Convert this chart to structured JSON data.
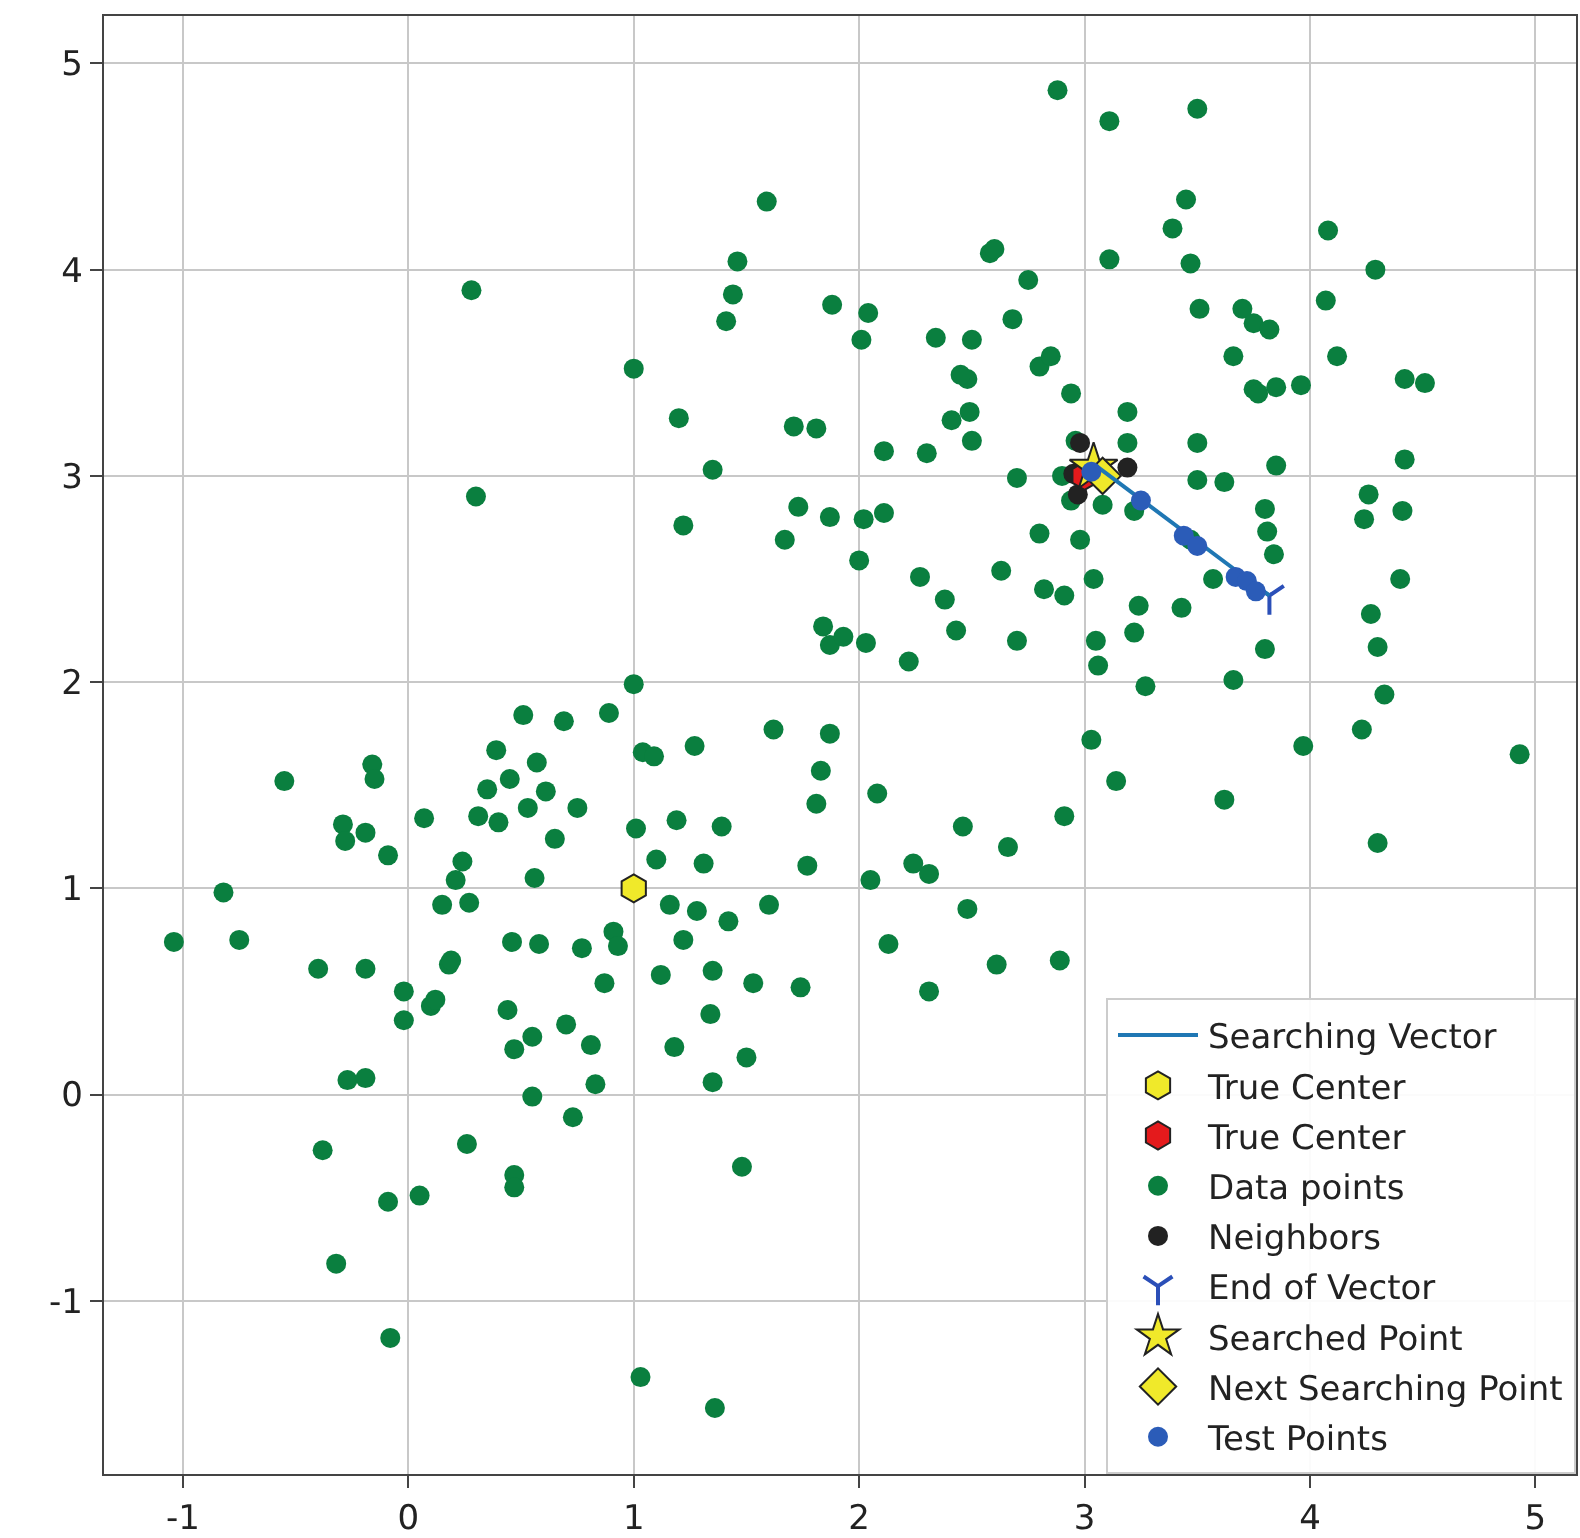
{
  "chart_data": {
    "type": "scatter",
    "xlim": [
      -1.35,
      5.18
    ],
    "ylim": [
      -1.84,
      5.23
    ],
    "xticks": [
      -1,
      0,
      1,
      2,
      3,
      4,
      5
    ],
    "yticks": [
      -1,
      0,
      1,
      2,
      3,
      4,
      5
    ],
    "grid": true,
    "legend": "bottom right",
    "series": [
      {
        "name": "Searching Vector",
        "type": "line",
        "marker": "none",
        "line_style": "solid",
        "color": "#1f77b4",
        "x": [
          3.05,
          3.82
        ],
        "values": [
          3.05,
          2.42
        ]
      },
      {
        "name": "True Center",
        "color": "#f0e92a",
        "x": [
          1.0
        ],
        "values": [
          1.0
        ]
      },
      {
        "name": "True Center",
        "color": "#e41a1c",
        "x": [
          3.0
        ],
        "values": [
          3.0
        ]
      },
      {
        "name": "Data points",
        "marker": "circle",
        "color": "#0a7f3f",
        "x": [
          -1.04,
          -0.82,
          -0.75,
          -0.55,
          -0.4,
          -0.38,
          -0.32,
          -0.29,
          -0.28,
          -0.27,
          -0.19,
          -0.19,
          -0.19,
          -0.16,
          -0.15,
          -0.09,
          -0.08,
          -0.09,
          -0.02,
          -0.02,
          0.05,
          0.07,
          0.1,
          0.12,
          0.15,
          0.18,
          0.19,
          0.21,
          0.24,
          0.26,
          0.27,
          0.31,
          0.35,
          0.39,
          0.4,
          0.45,
          0.44,
          0.46,
          0.47,
          0.47,
          0.47,
          0.51,
          0.53,
          0.55,
          0.55,
          0.56,
          0.57,
          0.58,
          0.61,
          0.65,
          0.69,
          0.7,
          0.75,
          0.77,
          0.73,
          0.81,
          0.83,
          0.87,
          0.89,
          0.91,
          0.93,
          1.0,
          1.01,
          1.03,
          1.04,
          1.09,
          1.1,
          1.12,
          1.16,
          1.18,
          1.19,
          1.22,
          1.27,
          1.28,
          1.31,
          1.34,
          1.35,
          1.36,
          1.35,
          1.39,
          1.42,
          1.48,
          1.5,
          1.53,
          1.6,
          1.62,
          1.74,
          1.77,
          1.81,
          1.83,
          1.87,
          2.05,
          2.08,
          2.13,
          2.24,
          2.31,
          2.31,
          2.46,
          2.48,
          2.61,
          2.66,
          2.91,
          3.03,
          3.14,
          2.89,
          0.3,
          0.28,
          1.0,
          1.22,
          1.2,
          1.35,
          1.41,
          1.44,
          1.46,
          1.59,
          1.67,
          1.71,
          1.73,
          1.84,
          1.87,
          1.87,
          1.81,
          1.88,
          1.93,
          2.0,
          2.01,
          2.04,
          2.03,
          2.11,
          2.11,
          2.02,
          2.22,
          2.27,
          2.3,
          2.34,
          2.41,
          2.38,
          2.43,
          2.48,
          2.49,
          2.45,
          2.5,
          2.5,
          2.58,
          2.6,
          2.63,
          2.7,
          2.7,
          2.68,
          2.75,
          2.8,
          2.8,
          2.82,
          2.85,
          2.91,
          2.94,
          2.9,
          2.96,
          2.88,
          2.94,
          2.98,
          3.04,
          3.05,
          3.06,
          3.11,
          3.11,
          3.19,
          3.22,
          3.22,
          3.24,
          3.27,
          3.39,
          3.45,
          3.5,
          3.47,
          3.47,
          3.5,
          3.43,
          3.51,
          3.5,
          3.57,
          3.62,
          3.7,
          3.66,
          3.66,
          3.62,
          3.75,
          3.75,
          3.77,
          3.85,
          3.82,
          3.85,
          3.8,
          3.81,
          3.8,
          3.84,
          3.96,
          3.97,
          4.07,
          4.08,
          4.12,
          4.24,
          4.26,
          4.29,
          4.27,
          4.3,
          4.3,
          4.33,
          4.42,
          4.4,
          4.41,
          4.42,
          4.51,
          4.93,
          4.23,
          3.19,
          3.08
        ],
        "values": [
          0.74,
          0.98,
          0.75,
          1.52,
          0.61,
          -0.27,
          -0.82,
          1.31,
          1.23,
          0.07,
          1.27,
          0.08,
          0.61,
          1.6,
          1.53,
          1.16,
          -1.18,
          -0.52,
          0.5,
          0.36,
          -0.49,
          1.34,
          0.43,
          0.46,
          0.92,
          0.63,
          0.65,
          1.04,
          1.13,
          -0.24,
          0.93,
          1.35,
          1.48,
          1.67,
          1.32,
          1.53,
          0.41,
          0.74,
          -0.39,
          -0.45,
          0.22,
          1.84,
          1.39,
          -0.01,
          0.28,
          1.05,
          1.61,
          0.73,
          1.47,
          1.24,
          1.81,
          0.34,
          1.39,
          0.71,
          -0.11,
          0.24,
          0.05,
          0.54,
          1.85,
          0.79,
          0.72,
          1.99,
          1.29,
          -1.37,
          1.66,
          1.64,
          1.14,
          0.58,
          0.92,
          0.23,
          1.33,
          0.75,
          1.69,
          0.89,
          1.12,
          0.39,
          0.06,
          -1.52,
          0.6,
          1.3,
          0.84,
          -0.35,
          0.18,
          0.54,
          0.92,
          1.77,
          0.52,
          1.11,
          1.41,
          1.57,
          1.75,
          1.04,
          1.46,
          0.73,
          1.12,
          0.5,
          1.07,
          1.3,
          0.9,
          0.63,
          1.2,
          1.35,
          1.72,
          1.52,
          0.65,
          2.9,
          3.9,
          3.52,
          2.76,
          3.28,
          3.03,
          3.75,
          3.88,
          4.04,
          4.33,
          2.69,
          3.24,
          2.85,
          2.27,
          2.18,
          2.8,
          3.23,
          3.83,
          2.22,
          2.59,
          3.66,
          3.79,
          2.19,
          3.12,
          2.82,
          2.79,
          2.1,
          2.51,
          3.11,
          3.67,
          3.27,
          2.4,
          2.25,
          3.47,
          3.31,
          3.49,
          3.66,
          3.17,
          4.08,
          4.1,
          2.54,
          2.99,
          2.2,
          3.76,
          3.95,
          3.53,
          2.72,
          2.45,
          3.58,
          2.42,
          2.88,
          3.0,
          3.17,
          4.87,
          3.4,
          2.69,
          2.5,
          2.2,
          2.08,
          4.72,
          4.05,
          3.16,
          2.83,
          2.24,
          2.37,
          1.98,
          4.2,
          4.34,
          4.78,
          4.03,
          2.69,
          2.98,
          2.36,
          3.81,
          3.16,
          2.5,
          2.97,
          3.81,
          3.58,
          2.01,
          1.43,
          3.74,
          3.42,
          3.4,
          3.43,
          3.71,
          3.05,
          2.84,
          2.73,
          2.16,
          2.62,
          3.44,
          1.69,
          3.85,
          4.19,
          3.58,
          2.79,
          2.91,
          4.0,
          2.33,
          2.17,
          1.22,
          1.94,
          3.08,
          2.5,
          2.83,
          3.47,
          3.45,
          1.65,
          1.77,
          3.31,
          2.86
        ]
      },
      {
        "name": "Neighbors",
        "marker": "circle",
        "color": "#222222",
        "x": [
          2.98,
          2.95,
          3.19,
          2.97
        ],
        "values": [
          3.16,
          3.01,
          3.04,
          2.91
        ]
      },
      {
        "name": "End of Vector",
        "marker": "cross",
        "color": "#2b4fb8",
        "x": [
          3.82
        ],
        "values": [
          2.42
        ]
      },
      {
        "name": "Searched Point",
        "marker": "star",
        "color": "#f0e92a",
        "x": [
          3.04
        ],
        "values": [
          3.04
        ]
      },
      {
        "name": "Next Searching Point",
        "marker": "diamond",
        "color": "#f0e92a",
        "x": [
          3.08
        ],
        "values": [
          3.0
        ]
      },
      {
        "name": "Test Points",
        "marker": "circle",
        "color": "#2b5cb8",
        "x": [
          3.03,
          3.25,
          3.44,
          3.5,
          3.67,
          3.72,
          3.76
        ],
        "values": [
          3.02,
          2.88,
          2.71,
          2.66,
          2.51,
          2.49,
          2.44
        ]
      }
    ]
  }
}
